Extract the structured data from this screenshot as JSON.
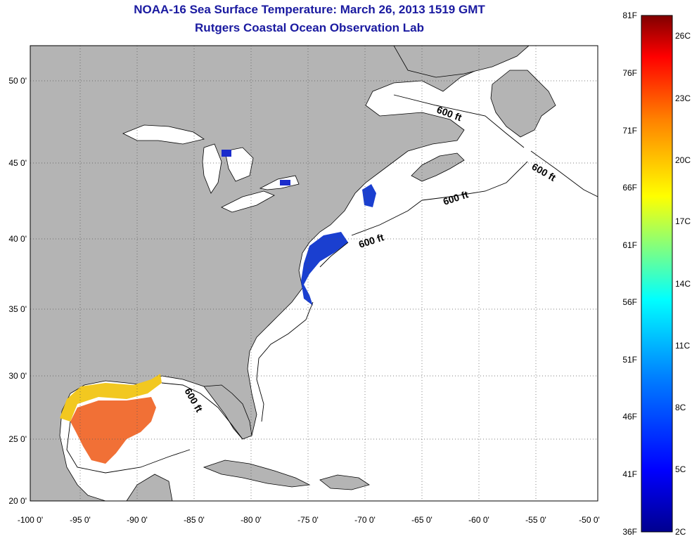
{
  "header": {
    "title": "NOAA-16 Sea Surface Temperature:  March 26, 2013 1519 GMT",
    "subtitle": "Rutgers Coastal Ocean Observation Lab"
  },
  "map": {
    "lon_ticks": [
      "-100 0'",
      "-95 0'",
      "-90 0'",
      "-85 0'",
      "-80 0'",
      "-75 0'",
      "-70 0'",
      "-65 0'",
      "-60 0'",
      "-55 0'",
      "-50 0'"
    ],
    "lat_ticks": [
      "50 0'",
      "45 0'",
      "40 0'",
      "35 0'",
      "30 0'",
      "25 0'",
      "20 0'"
    ],
    "contour_labels": [
      "600 ft",
      "600 ft",
      "600 ft",
      "600 ft",
      "600 ft"
    ],
    "colors": {
      "land": "#b4b4b4",
      "ocean": "#ffffff",
      "cold_water": "#1a2ccc",
      "warm_water": "#f06020",
      "gulf_coast": "#f2d020"
    }
  },
  "colorbar": {
    "f_labels": [
      "81F",
      "76F",
      "71F",
      "66F",
      "61F",
      "56F",
      "51F",
      "46F",
      "41F",
      "36F"
    ],
    "c_labels": [
      "26C",
      "23C",
      "20C",
      "17C",
      "14C",
      "11C",
      "8C",
      "5C",
      "2C"
    ],
    "colors": [
      "#00008f",
      "#0000ff",
      "#0080ff",
      "#00ffff",
      "#80ff80",
      "#ffff00",
      "#ff8000",
      "#ff0000",
      "#800000"
    ]
  }
}
